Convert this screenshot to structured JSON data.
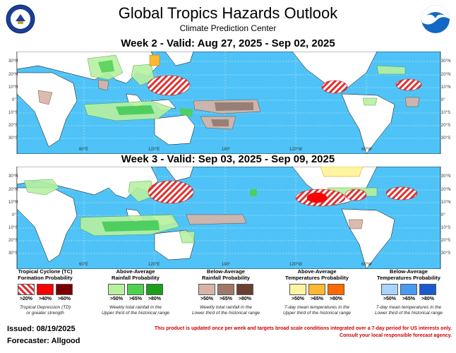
{
  "header": {
    "title": "Global Tropics Hazards Outlook",
    "subtitle": "Climate Prediction Center",
    "left_logo": "doc-seal-icon",
    "right_logo": "noaa-logo-icon"
  },
  "weeks": [
    {
      "title": "Week 2 - Valid: Aug 27, 2025 - Sep 02, 2025"
    },
    {
      "title": "Week 3 - Valid: Sep 03, 2025 - Sep 09, 2025"
    }
  ],
  "axes": {
    "lat_labels": [
      "30°N",
      "20°N",
      "10°N",
      "0°",
      "10°S",
      "20°S",
      "30°S"
    ],
    "lon_labels": [
      "60°E",
      "120°E",
      "180°",
      "120°W",
      "60°W"
    ]
  },
  "legend": [
    {
      "title_line1": "Tropical Cyclone (TC)",
      "title_line2": "Formation Probability",
      "labels": [
        ">20%",
        ">40%",
        ">60%"
      ],
      "colors": [
        "#e03030",
        "#ff0000",
        "#7a0000"
      ],
      "note_line1": "Tropical Depression (TD)",
      "note_line2": "or greater strength"
    },
    {
      "title_line1": "Above-Average",
      "title_line2": "Rainfall Probability",
      "labels": [
        ">50%",
        ">65%",
        ">80%"
      ],
      "colors": [
        "#b8f0a0",
        "#50d050",
        "#1aa01a"
      ],
      "note_line1": "Weekly total rainfall in the",
      "note_line2": "Upper third of the historical range"
    },
    {
      "title_line1": "Below-Average",
      "title_line2": "Rainfall Probability",
      "labels": [
        ">50%",
        ">65%",
        ">80%"
      ],
      "colors": [
        "#d8b4a8",
        "#a07868",
        "#6a4030"
      ],
      "note_line1": "Weekly total rainfall in the",
      "note_line2": "Lower third of the historical range"
    },
    {
      "title_line1": "Above-Average",
      "title_line2": "Temperatures Probability",
      "labels": [
        ">50%",
        ">65%",
        ">80%"
      ],
      "colors": [
        "#fff4a0",
        "#ffb830",
        "#ff6a00"
      ],
      "note_line1": "7-day mean temperatures in the",
      "note_line2": "Upper third of the historical range"
    },
    {
      "title_line1": "Below-Average",
      "title_line2": "Temperatures Probability",
      "labels": [
        ">50%",
        ">65%",
        ">80%"
      ],
      "colors": [
        "#a8d4ff",
        "#4a9af0",
        "#1a5ad0"
      ],
      "note_line1": "7-day mean temperatures in the",
      "note_line2": "Lower third of the historical range"
    }
  ],
  "footer": {
    "issued": "Issued: 08/19/2025",
    "forecaster": "Forecaster: Allgood",
    "disclaimer_line1": "This product is updated once per week and targets broad scale conditions integrated over a 7-day period for US interests only.",
    "disclaimer_line2": "Consult your local responsible forecast agency."
  },
  "colors": {
    "ocean": "#4fc3f7",
    "land": "#ffffff",
    "tc_hatch": "#e03030"
  }
}
